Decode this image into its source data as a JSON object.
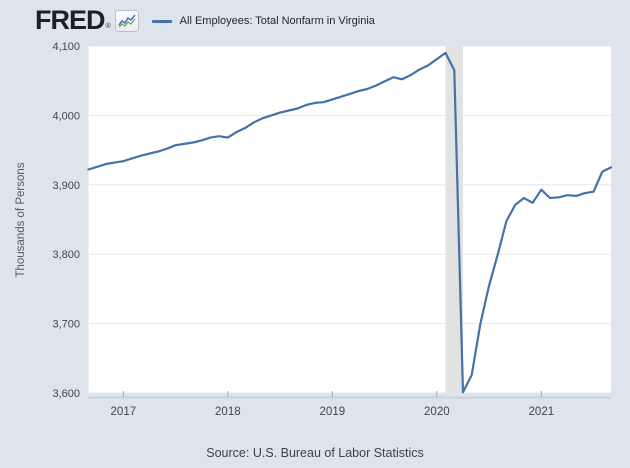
{
  "header": {
    "logo_text": "FRED",
    "logo_registered": "®",
    "legend": {
      "label": "All Employees: Total Nonfarm in Virginia",
      "line_color": "#4572a7"
    }
  },
  "footer": {
    "source": "Source: U.S. Bureau of Labor Statistics"
  },
  "colors": {
    "page_background": "#dde4ec",
    "plot_background": "#ffffff",
    "gridline": "#e7e7e7",
    "axis_line": "#c7d3e1",
    "tick": "#a9adb2",
    "tick_text": "#43474c",
    "recession_band": "#e2e2e2",
    "series_line": "#4572a7"
  },
  "chart_data": {
    "type": "line",
    "title": "All Employees: Total Nonfarm in Virginia",
    "ylabel": "Thousands of Persons",
    "xlabel": "",
    "units": "Thousands of Persons",
    "frequency": "monthly",
    "ylim": [
      3600,
      4100
    ],
    "grid": true,
    "legend_position": "top",
    "y_ticks": [
      4100,
      4000,
      3900,
      3800,
      3700,
      3600
    ],
    "y_tick_labels": [
      "4,100",
      "4,000",
      "3,900",
      "3,800",
      "3,700",
      "3,600"
    ],
    "x_ticks": [
      {
        "label": "2017",
        "index": 4
      },
      {
        "label": "2018",
        "index": 16
      },
      {
        "label": "2019",
        "index": 28
      },
      {
        "label": "2020",
        "index": 40
      },
      {
        "label": "2021",
        "index": 52
      }
    ],
    "recession_band": {
      "start_index": 41,
      "end_index": 43
    },
    "x": [
      "2016-09",
      "2016-10",
      "2016-11",
      "2016-12",
      "2017-01",
      "2017-02",
      "2017-03",
      "2017-04",
      "2017-05",
      "2017-06",
      "2017-07",
      "2017-08",
      "2017-09",
      "2017-10",
      "2017-11",
      "2017-12",
      "2018-01",
      "2018-02",
      "2018-03",
      "2018-04",
      "2018-05",
      "2018-06",
      "2018-07",
      "2018-08",
      "2018-09",
      "2018-10",
      "2018-11",
      "2018-12",
      "2019-01",
      "2019-02",
      "2019-03",
      "2019-04",
      "2019-05",
      "2019-06",
      "2019-07",
      "2019-08",
      "2019-09",
      "2019-10",
      "2019-11",
      "2019-12",
      "2020-01",
      "2020-02",
      "2020-03",
      "2020-04",
      "2020-05",
      "2020-06",
      "2020-07",
      "2020-08",
      "2020-09",
      "2020-10",
      "2020-11",
      "2020-12",
      "2021-01",
      "2021-02",
      "2021-03",
      "2021-04",
      "2021-05",
      "2021-06",
      "2021-07",
      "2021-08",
      "2021-09"
    ],
    "values": [
      3922,
      3926,
      3930,
      3932,
      3934,
      3938,
      3942,
      3945,
      3948,
      3952,
      3957,
      3959,
      3961,
      3964,
      3968,
      3970,
      3968,
      3976,
      3982,
      3990,
      3996,
      4000,
      4004,
      4007,
      4010,
      4015,
      4018,
      4019,
      4023,
      4027,
      4031,
      4035,
      4038,
      4043,
      4049,
      4055,
      4052,
      4058,
      4066,
      4072,
      4081,
      4090,
      4065,
      3601,
      3626,
      3700,
      3755,
      3800,
      3848,
      3871,
      3881,
      3874,
      3893,
      3881,
      3882,
      3885,
      3884,
      3888,
      3890,
      3919,
      3925
    ]
  }
}
